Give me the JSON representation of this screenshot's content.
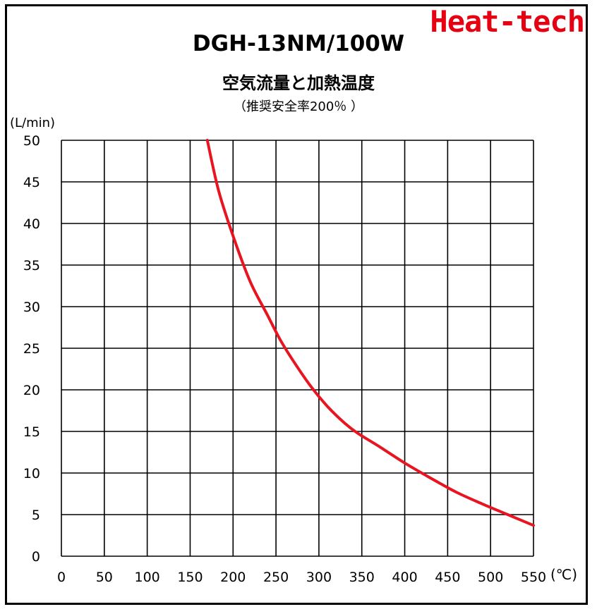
{
  "brand": "Heat-tech",
  "colors": {
    "brand": "#e50012",
    "curve": "#e8141f",
    "grid": "#000000"
  },
  "chart_data": {
    "type": "line",
    "title": "DGH-13NM/100W",
    "subtitle": "空気流量と加熱温度",
    "note": "（推奨安全率200％ ）",
    "xlabel": "(℃)",
    "ylabel": "(L/min)",
    "xlim": [
      0,
      550
    ],
    "ylim": [
      0,
      50
    ],
    "x_ticks": [
      "0",
      "50",
      "100",
      "150",
      "200",
      "250",
      "300",
      "350",
      "400",
      "450",
      "500",
      "550"
    ],
    "y_ticks": [
      "0",
      "5",
      "10",
      "15",
      "20",
      "25",
      "30",
      "35",
      "40",
      "45",
      "50"
    ],
    "grid": true,
    "series": [
      {
        "x": [
          170,
          183,
          200,
          220,
          240,
          255,
          270,
          290,
          310,
          330,
          345,
          370,
          400,
          430,
          460,
          490,
          520,
          550
        ],
        "y": [
          50,
          44,
          38.5,
          33,
          29,
          26,
          23.5,
          20.5,
          18,
          16,
          14.8,
          13.2,
          11.2,
          9.4,
          7.7,
          6.3,
          5.0,
          3.7
        ]
      }
    ]
  }
}
